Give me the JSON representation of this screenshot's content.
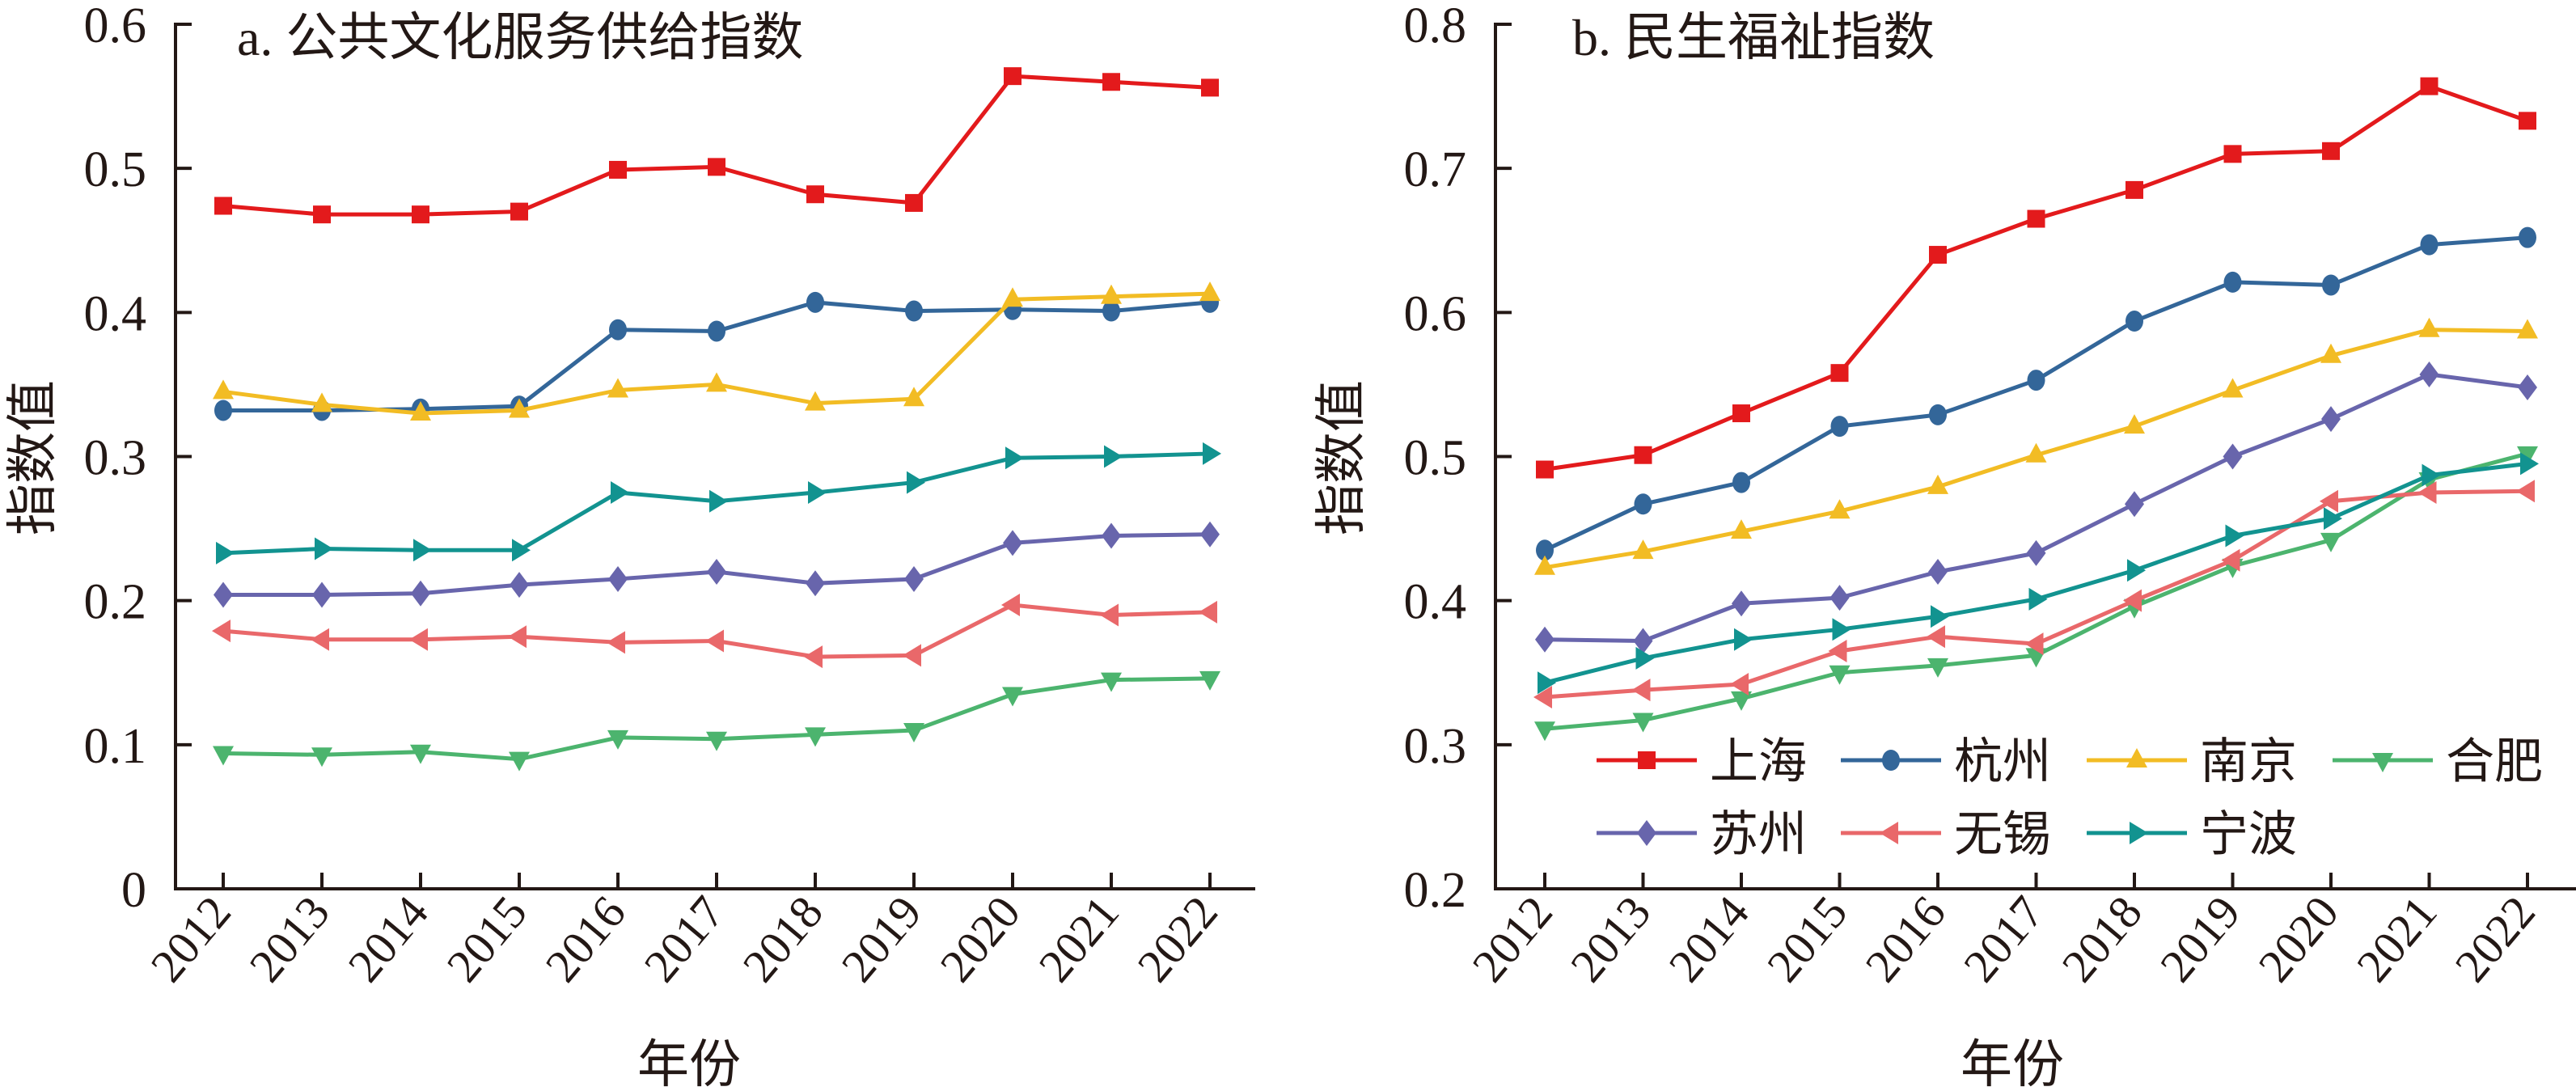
{
  "chart_data": [
    {
      "id": "a",
      "type": "line",
      "title": "a. 公共文化服务供给指数",
      "xlabel": "年份",
      "ylabel": "指数值",
      "ylim": [
        0,
        0.6
      ],
      "yticks": [
        0,
        0.1,
        0.2,
        0.3,
        0.4,
        0.5,
        0.6
      ],
      "ytick_labels": [
        "0",
        "0.1",
        "0.2",
        "0.3",
        "0.4",
        "0.5",
        "0.6"
      ],
      "categories": [
        "2012",
        "2013",
        "2014",
        "2015",
        "2016",
        "2017",
        "2018",
        "2019",
        "2020",
        "2021",
        "2022"
      ],
      "grid": false,
      "legend": "none",
      "series": [
        {
          "name": "上海",
          "marker": "square",
          "color": "#e31a1c",
          "values": [
            0.474,
            0.468,
            0.468,
            0.47,
            0.499,
            0.501,
            0.482,
            0.476,
            0.564,
            0.56,
            0.556
          ]
        },
        {
          "name": "杭州",
          "marker": "circle",
          "color": "#336699",
          "values": [
            0.332,
            0.332,
            0.333,
            0.335,
            0.388,
            0.387,
            0.407,
            0.401,
            0.402,
            0.401,
            0.407
          ]
        },
        {
          "name": "南京",
          "marker": "triangle-up",
          "color": "#f2bc24",
          "values": [
            0.345,
            0.336,
            0.33,
            0.332,
            0.346,
            0.35,
            0.337,
            0.34,
            0.409,
            0.411,
            0.413
          ]
        },
        {
          "name": "合肥",
          "marker": "triangle-down",
          "color": "#4cb46e",
          "values": [
            0.094,
            0.093,
            0.095,
            0.09,
            0.105,
            0.104,
            0.107,
            0.11,
            0.135,
            0.145,
            0.146
          ]
        },
        {
          "name": "苏州",
          "marker": "diamond",
          "color": "#6865ac",
          "values": [
            0.204,
            0.204,
            0.205,
            0.211,
            0.215,
            0.22,
            0.212,
            0.215,
            0.24,
            0.245,
            0.246
          ]
        },
        {
          "name": "无锡",
          "marker": "triangle-left",
          "color": "#e9686a",
          "values": [
            0.179,
            0.173,
            0.173,
            0.175,
            0.171,
            0.172,
            0.161,
            0.162,
            0.197,
            0.19,
            0.192
          ]
        },
        {
          "name": "宁波",
          "marker": "triangle-right",
          "color": "#129390",
          "values": [
            0.233,
            0.236,
            0.235,
            0.235,
            0.275,
            0.269,
            0.275,
            0.282,
            0.299,
            0.3,
            0.302
          ]
        }
      ]
    },
    {
      "id": "b",
      "type": "line",
      "title": "b. 民生福祉指数",
      "xlabel": "年份",
      "ylabel": "指数值",
      "ylim": [
        0.2,
        0.8
      ],
      "yticks": [
        0.2,
        0.3,
        0.4,
        0.5,
        0.6,
        0.7,
        0.8
      ],
      "ytick_labels": [
        "0.2",
        "0.3",
        "0.4",
        "0.5",
        "0.6",
        "0.7",
        "0.8"
      ],
      "categories": [
        "2012",
        "2013",
        "2014",
        "2015",
        "2016",
        "2017",
        "2018",
        "2019",
        "2020",
        "2021",
        "2022"
      ],
      "grid": false,
      "legend": "bottom-right",
      "series": [
        {
          "name": "上海",
          "marker": "square",
          "color": "#e31a1c",
          "values": [
            0.491,
            0.501,
            0.53,
            0.558,
            0.64,
            0.665,
            0.685,
            0.71,
            0.712,
            0.757,
            0.733
          ]
        },
        {
          "name": "杭州",
          "marker": "circle",
          "color": "#336699",
          "values": [
            0.435,
            0.467,
            0.482,
            0.521,
            0.529,
            0.553,
            0.594,
            0.621,
            0.619,
            0.647,
            0.652
          ]
        },
        {
          "name": "南京",
          "marker": "triangle-up",
          "color": "#f2bc24",
          "values": [
            0.423,
            0.434,
            0.448,
            0.462,
            0.479,
            0.501,
            0.521,
            0.546,
            0.57,
            0.588,
            0.587
          ]
        },
        {
          "name": "合肥",
          "marker": "triangle-down",
          "color": "#4cb46e",
          "values": [
            0.311,
            0.317,
            0.332,
            0.35,
            0.355,
            0.362,
            0.396,
            0.424,
            0.442,
            0.484,
            0.502
          ]
        },
        {
          "name": "苏州",
          "marker": "diamond",
          "color": "#6865ac",
          "values": [
            0.373,
            0.372,
            0.398,
            0.402,
            0.42,
            0.433,
            0.467,
            0.5,
            0.526,
            0.557,
            0.548
          ]
        },
        {
          "name": "无锡",
          "marker": "triangle-left",
          "color": "#e9686a",
          "values": [
            0.333,
            0.338,
            0.342,
            0.365,
            0.375,
            0.37,
            0.4,
            0.428,
            0.469,
            0.475,
            0.476
          ]
        },
        {
          "name": "宁波",
          "marker": "triangle-right",
          "color": "#129390",
          "values": [
            0.343,
            0.36,
            0.373,
            0.38,
            0.389,
            0.401,
            0.421,
            0.445,
            0.457,
            0.487,
            0.495
          ]
        }
      ]
    }
  ],
  "legend": {
    "entries": [
      {
        "name": "上海",
        "marker": "square",
        "color": "#e31a1c"
      },
      {
        "name": "杭州",
        "marker": "circle",
        "color": "#336699"
      },
      {
        "name": "南京",
        "marker": "triangle-up",
        "color": "#f2bc24"
      },
      {
        "name": "合肥",
        "marker": "triangle-down",
        "color": "#4cb46e"
      },
      {
        "name": "苏州",
        "marker": "diamond",
        "color": "#6865ac"
      },
      {
        "name": "无锡",
        "marker": "triangle-left",
        "color": "#e9686a"
      },
      {
        "name": "宁波",
        "marker": "triangle-right",
        "color": "#129390"
      }
    ]
  }
}
